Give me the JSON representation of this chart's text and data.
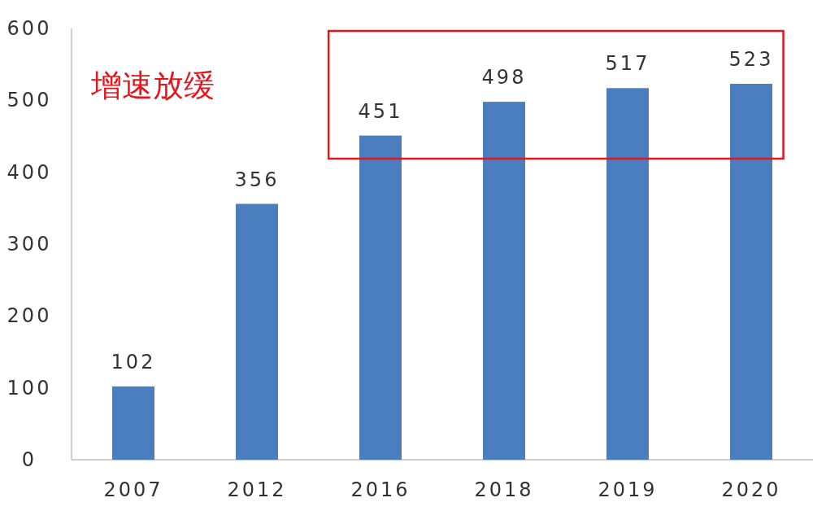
{
  "chart_data": {
    "type": "bar",
    "categories": [
      "2007",
      "2012",
      "2016",
      "2018",
      "2019",
      "2020"
    ],
    "values": [
      102,
      356,
      451,
      498,
      517,
      523
    ],
    "color": "#4a7ebf",
    "ylim": [
      0,
      600
    ],
    "yticks": [
      0,
      100,
      200,
      300,
      400,
      500,
      600
    ],
    "data_labels": true,
    "annotations": [
      "增速放缓"
    ]
  }
}
